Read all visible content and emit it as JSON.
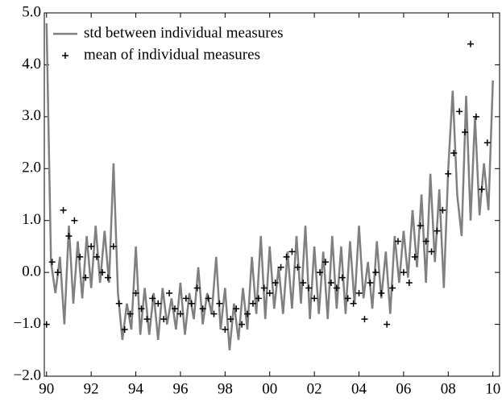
{
  "chart_data": {
    "type": "line-scatter",
    "xlim": [
      1989.9,
      2010.3
    ],
    "xticks": [
      {
        "value": 1990,
        "label": "90"
      },
      {
        "value": 1992,
        "label": "92"
      },
      {
        "value": 1994,
        "label": "94"
      },
      {
        "value": 1996,
        "label": "96"
      },
      {
        "value": 1998,
        "label": "98"
      },
      {
        "value": 2000,
        "label": "00"
      },
      {
        "value": 2002,
        "label": "02"
      },
      {
        "value": 2004,
        "label": "04"
      },
      {
        "value": 2006,
        "label": "06"
      },
      {
        "value": 2008,
        "label": "08"
      },
      {
        "value": 2010,
        "label": "10"
      }
    ],
    "ylim": [
      -2,
      5
    ],
    "yticks": [
      {
        "value": -2,
        "label": "−2.0"
      },
      {
        "value": -1,
        "label": "−1.0"
      },
      {
        "value": 0,
        "label": "0.0"
      },
      {
        "value": 1,
        "label": "1.0"
      },
      {
        "value": 2,
        "label": "2.0"
      },
      {
        "value": 3,
        "label": "3.0"
      },
      {
        "value": 4,
        "label": "4.0"
      },
      {
        "value": 5,
        "label": "5.0"
      }
    ],
    "legend": "upper left",
    "series": [
      {
        "name": "std between individual measures",
        "type": "line",
        "color": "#808080",
        "x": [
          1990.0,
          1990.2,
          1990.4,
          1990.6,
          1990.8,
          1991.0,
          1991.2,
          1991.4,
          1991.6,
          1991.8,
          1992.0,
          1992.2,
          1992.4,
          1992.6,
          1992.8,
          1993.0,
          1993.2,
          1993.4,
          1993.6,
          1993.8,
          1994.0,
          1994.2,
          1994.4,
          1994.6,
          1994.8,
          1995.0,
          1995.2,
          1995.4,
          1995.6,
          1995.8,
          1996.0,
          1996.2,
          1996.4,
          1996.6,
          1996.8,
          1997.0,
          1997.2,
          1997.4,
          1997.6,
          1997.8,
          1998.0,
          1998.2,
          1998.4,
          1998.6,
          1998.8,
          1999.0,
          1999.2,
          1999.4,
          1999.6,
          1999.8,
          2000.0,
          2000.2,
          2000.4,
          2000.6,
          2000.8,
          2001.0,
          2001.2,
          2001.4,
          2001.6,
          2001.8,
          2002.0,
          2002.2,
          2002.4,
          2002.6,
          2002.8,
          2003.0,
          2003.2,
          2003.4,
          2003.6,
          2003.8,
          2004.0,
          2004.2,
          2004.4,
          2004.6,
          2004.8,
          2005.0,
          2005.2,
          2005.4,
          2005.6,
          2005.8,
          2006.0,
          2006.2,
          2006.4,
          2006.6,
          2006.8,
          2007.0,
          2007.2,
          2007.4,
          2007.6,
          2007.8,
          2008.0,
          2008.2,
          2008.4,
          2008.6,
          2008.8,
          2009.0,
          2009.2,
          2009.4,
          2009.6,
          2009.8,
          2010.0
        ],
        "values": [
          4.8,
          0.2,
          -0.4,
          0.3,
          -1.0,
          0.9,
          -0.6,
          0.6,
          -0.5,
          0.7,
          -0.3,
          0.9,
          -0.2,
          0.8,
          -0.2,
          2.1,
          -0.4,
          -1.3,
          -0.6,
          -1.1,
          0.5,
          -1.2,
          -0.3,
          -1.2,
          -0.4,
          -1.3,
          -0.3,
          -1.0,
          -0.5,
          -1.1,
          -0.2,
          -1.2,
          -0.4,
          -0.9,
          0.1,
          -1.0,
          -0.4,
          -0.8,
          0.3,
          -1.1,
          -0.3,
          -1.5,
          -0.6,
          -1.3,
          -0.3,
          -1.1,
          0.3,
          -0.8,
          0.7,
          -0.9,
          0.5,
          -0.7,
          0.1,
          -0.8,
          0.4,
          -0.7,
          0.7,
          -0.6,
          0.9,
          -0.9,
          0.5,
          -0.8,
          0.4,
          -0.9,
          0.7,
          -0.7,
          0.5,
          -0.8,
          0.6,
          -0.6,
          0.9,
          -0.5,
          0.2,
          -0.7,
          0.6,
          -0.5,
          0.4,
          -0.8,
          0.7,
          -0.2,
          0.8,
          -0.1,
          1.2,
          0.1,
          1.5,
          -0.2,
          1.9,
          0.2,
          1.6,
          -0.3,
          2.0,
          3.5,
          1.5,
          0.7,
          3.4,
          1.0,
          3.0,
          1.1,
          2.1,
          1.2,
          3.7
        ]
      },
      {
        "name": "mean of individual measures",
        "type": "scatter",
        "color": "#000000",
        "x": [
          1990.0,
          1990.25,
          1990.5,
          1990.75,
          1991.0,
          1991.25,
          1991.5,
          1991.75,
          1992.0,
          1992.25,
          1992.5,
          1992.75,
          1993.0,
          1993.25,
          1993.5,
          1993.75,
          1994.0,
          1994.25,
          1994.5,
          1994.75,
          1995.0,
          1995.25,
          1995.5,
          1995.75,
          1996.0,
          1996.25,
          1996.5,
          1996.75,
          1997.0,
          1997.25,
          1997.5,
          1997.75,
          1998.0,
          1998.25,
          1998.5,
          1998.75,
          1999.0,
          1999.25,
          1999.5,
          1999.75,
          2000.0,
          2000.25,
          2000.5,
          2000.75,
          2001.0,
          2001.25,
          2001.5,
          2001.75,
          2002.0,
          2002.25,
          2002.5,
          2002.75,
          2003.0,
          2003.25,
          2003.5,
          2003.75,
          2004.0,
          2004.25,
          2004.5,
          2004.75,
          2005.0,
          2005.25,
          2005.5,
          2005.75,
          2006.0,
          2006.25,
          2006.5,
          2006.75,
          2007.0,
          2007.25,
          2007.5,
          2007.75,
          2008.0,
          2008.25,
          2008.5,
          2008.75,
          2009.0,
          2009.25,
          2009.5,
          2009.75
        ],
        "values": [
          -1.0,
          0.2,
          0.0,
          1.2,
          0.7,
          1.0,
          0.3,
          -0.1,
          0.5,
          0.3,
          0.0,
          -0.1,
          0.5,
          -0.6,
          -1.1,
          -0.8,
          -0.4,
          -0.7,
          -0.9,
          -0.5,
          -0.6,
          -0.9,
          -0.4,
          -0.7,
          -0.8,
          -0.5,
          -0.6,
          -0.3,
          -0.7,
          -0.5,
          -0.8,
          -0.6,
          -1.1,
          -0.9,
          -0.7,
          -1.0,
          -0.8,
          -0.6,
          -0.5,
          -0.3,
          -0.4,
          -0.2,
          0.1,
          0.3,
          0.4,
          0.1,
          -0.2,
          -0.3,
          -0.5,
          0.0,
          0.2,
          -0.2,
          -0.3,
          -0.1,
          -0.5,
          -0.6,
          -0.4,
          -0.9,
          -0.2,
          0.0,
          -0.4,
          -1.0,
          -0.3,
          0.6,
          0.0,
          -0.2,
          0.3,
          0.9,
          0.6,
          0.4,
          0.8,
          1.2,
          1.9,
          2.3,
          3.1,
          2.7,
          4.4,
          3.0,
          1.6,
          2.5
        ]
      }
    ]
  }
}
